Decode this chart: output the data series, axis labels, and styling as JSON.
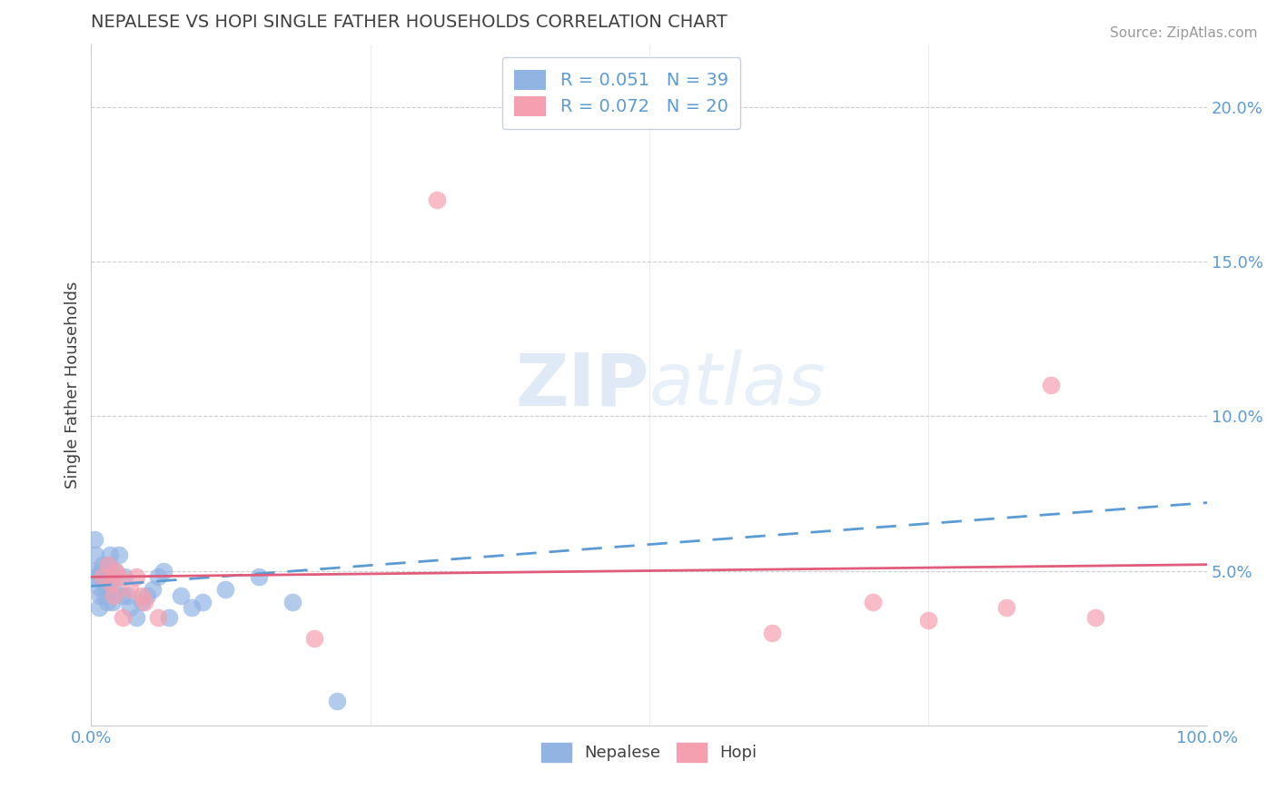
{
  "title": "NEPALESE VS HOPI SINGLE FATHER HOUSEHOLDS CORRELATION CHART",
  "source": "Source: ZipAtlas.com",
  "ylabel_label": "Single Father Households",
  "x_min": 0.0,
  "x_max": 1.0,
  "y_min": 0.0,
  "y_max": 0.22,
  "x_ticks": [
    0.0,
    0.25,
    0.5,
    0.75,
    1.0
  ],
  "x_tick_labels": [
    "0.0%",
    "",
    "",
    "",
    "100.0%"
  ],
  "y_ticks": [
    0.05,
    0.1,
    0.15,
    0.2
  ],
  "y_tick_labels": [
    "5.0%",
    "10.0%",
    "15.0%",
    "20.0%"
  ],
  "nepalese_R": 0.051,
  "nepalese_N": 39,
  "hopi_R": 0.072,
  "hopi_N": 20,
  "nepalese_color": "#92b4e3",
  "hopi_color": "#f4a0b0",
  "nepalese_line_color": "#5b9bd5",
  "hopi_line_color": "#e05c7a",
  "background_color": "#ffffff",
  "grid_color": "#c8c8c8",
  "title_color": "#404040",
  "tick_color": "#5b9bd5",
  "nepalese_x": [
    0.002,
    0.003,
    0.004,
    0.005,
    0.006,
    0.007,
    0.008,
    0.009,
    0.01,
    0.011,
    0.012,
    0.013,
    0.014,
    0.015,
    0.016,
    0.017,
    0.018,
    0.019,
    0.02,
    0.022,
    0.025,
    0.028,
    0.03,
    0.032,
    0.035,
    0.04,
    0.045,
    0.05,
    0.055,
    0.06,
    0.065,
    0.07,
    0.08,
    0.09,
    0.1,
    0.12,
    0.15,
    0.18,
    0.22
  ],
  "nepalese_y": [
    0.05,
    0.06,
    0.055,
    0.048,
    0.045,
    0.038,
    0.042,
    0.05,
    0.052,
    0.046,
    0.042,
    0.048,
    0.04,
    0.045,
    0.052,
    0.055,
    0.048,
    0.04,
    0.044,
    0.05,
    0.055,
    0.042,
    0.048,
    0.042,
    0.038,
    0.035,
    0.04,
    0.042,
    0.044,
    0.048,
    0.05,
    0.035,
    0.042,
    0.038,
    0.04,
    0.044,
    0.048,
    0.04,
    0.008
  ],
  "hopi_x": [
    0.01,
    0.015,
    0.018,
    0.02,
    0.022,
    0.025,
    0.028,
    0.035,
    0.04,
    0.045,
    0.048,
    0.06,
    0.2,
    0.31,
    0.61,
    0.7,
    0.75,
    0.82,
    0.86,
    0.9
  ],
  "hopi_y": [
    0.048,
    0.052,
    0.046,
    0.042,
    0.05,
    0.048,
    0.035,
    0.044,
    0.048,
    0.042,
    0.04,
    0.035,
    0.028,
    0.17,
    0.03,
    0.04,
    0.034,
    0.038,
    0.11,
    0.035
  ],
  "nep_line_x0": 0.0,
  "nep_line_y0": 0.045,
  "nep_line_x1": 1.0,
  "nep_line_y1": 0.072,
  "hopi_line_x0": 0.0,
  "hopi_line_y0": 0.048,
  "hopi_line_x1": 1.0,
  "hopi_line_y1": 0.052,
  "legend_box_color": "#ffffff",
  "legend_box_edge": "#c8d0e0"
}
